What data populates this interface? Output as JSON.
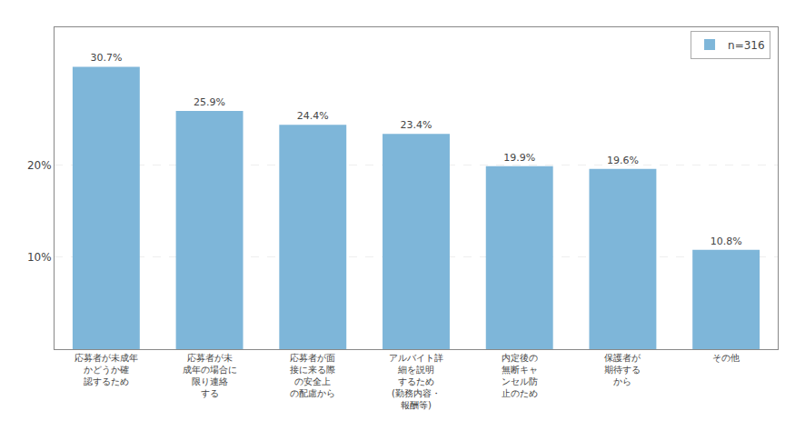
{
  "chart_data": {
    "type": "bar",
    "categories": [
      "応募者が未成年\nかどうか確\n認するため",
      "応募者が未\n成年の場合に\n限り連絡\nする",
      "応募者が面\n接に来る際\nの安全上\nの配慮から",
      "アルバイト詳\n細を説明\nするため\n(勤務内容・\n報酬等)",
      "内定後の\n無断キャ\nンセル防\n止のため",
      "保護者が\n期待する\nから",
      "その他"
    ],
    "series": [
      {
        "name": "n=316",
        "color": "#7EB6D9",
        "values": [
          30.7,
          25.9,
          24.4,
          23.4,
          19.9,
          19.6,
          10.8
        ],
        "value_labels": [
          "30.7%",
          "25.9%",
          "24.4%",
          "23.4%",
          "19.9%",
          "19.6%",
          "10.8%"
        ]
      }
    ],
    "ylim": [
      0,
      35
    ],
    "yticks": [
      {
        "value": 10,
        "label": "10%"
      },
      {
        "value": 20,
        "label": "20%"
      }
    ],
    "grid": true,
    "legend": "upper right",
    "data_labels": true
  }
}
